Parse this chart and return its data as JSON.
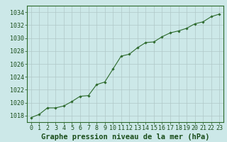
{
  "x": [
    0,
    1,
    2,
    3,
    4,
    5,
    6,
    7,
    8,
    9,
    10,
    11,
    12,
    13,
    14,
    15,
    16,
    17,
    18,
    19,
    20,
    21,
    22,
    23
  ],
  "y": [
    1017.7,
    1018.2,
    1019.2,
    1019.2,
    1019.5,
    1020.2,
    1021.0,
    1021.1,
    1022.8,
    1023.2,
    1025.2,
    1027.2,
    1027.5,
    1028.5,
    1029.3,
    1029.4,
    1030.2,
    1030.8,
    1031.1,
    1031.5,
    1032.2,
    1032.5,
    1033.3,
    1033.7
  ],
  "xlim": [
    -0.5,
    23.5
  ],
  "ylim": [
    1017,
    1035
  ],
  "yticks": [
    1018,
    1020,
    1022,
    1024,
    1026,
    1028,
    1030,
    1032,
    1034
  ],
  "xticks": [
    0,
    1,
    2,
    3,
    4,
    5,
    6,
    7,
    8,
    9,
    10,
    11,
    12,
    13,
    14,
    15,
    16,
    17,
    18,
    19,
    20,
    21,
    22,
    23
  ],
  "xlabel": "Graphe pression niveau de la mer (hPa)",
  "line_color": "#2d6a2d",
  "marker": "D",
  "marker_size": 1.8,
  "background_color": "#cce8e8",
  "plot_bg": "#cce8e8",
  "grid_color": "#b0c8c8",
  "tick_label_color": "#1a4d1a",
  "xlabel_color": "#1a4d1a",
  "xlabel_fontsize": 7.5,
  "tick_fontsize": 6.0
}
